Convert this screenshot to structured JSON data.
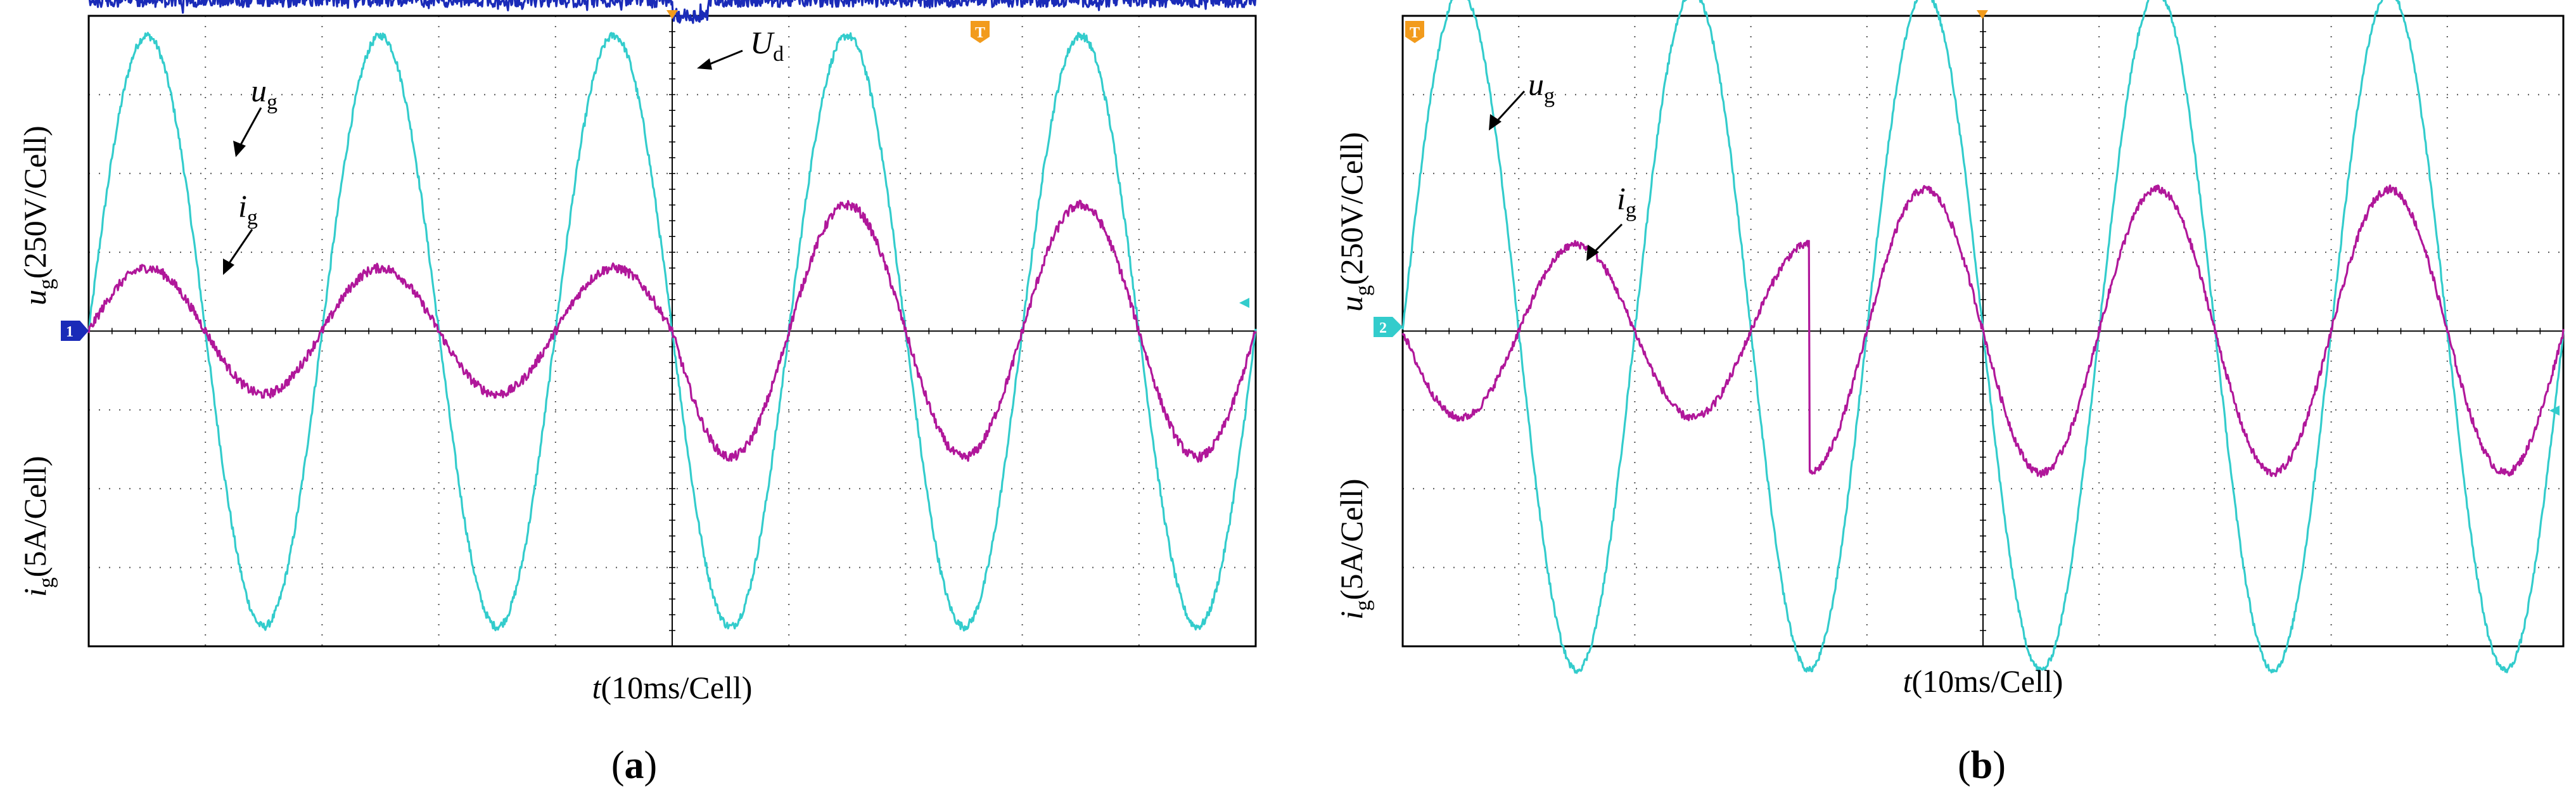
{
  "figure": {
    "panels": [
      {
        "id": "a",
        "caption_open": "(",
        "caption_letter": "a",
        "caption_close": ")",
        "xlabel_italic": "t",
        "xlabel_rest": "(10ms/Cell)",
        "ylabel_upper_var": "u",
        "ylabel_upper_sub": "g",
        "ylabel_upper_rest": "(250V/Cell)",
        "ylabel_lower_var": "i",
        "ylabel_lower_sub": "g",
        "ylabel_lower_rest": "(5A/Cell)",
        "annotations": {
          "ug": {
            "var": "u",
            "sub": "g"
          },
          "ig": {
            "var": "i",
            "sub": "g"
          },
          "ud": {
            "var": "U",
            "sub": "d"
          }
        },
        "markers": {
          "trigger": "T",
          "ch1": "1"
        }
      },
      {
        "id": "b",
        "caption_open": "(",
        "caption_letter": "b",
        "caption_close": ")",
        "xlabel_italic": "t",
        "xlabel_rest": "(10ms/Cell)",
        "ylabel_upper_var": "u",
        "ylabel_upper_sub": "g",
        "ylabel_upper_rest": "(250V/Cell)",
        "ylabel_lower_var": "i",
        "ylabel_lower_sub": "g",
        "ylabel_lower_rest": "(5A/Cell)",
        "annotations": {
          "ug": {
            "var": "u",
            "sub": "g"
          },
          "ig": {
            "var": "i",
            "sub": "g"
          }
        },
        "markers": {
          "trigger": "T",
          "ch2": "2"
        }
      }
    ]
  },
  "colors": {
    "grid_voltage": "#33cccc",
    "grid_current": "#b0179a",
    "dc_voltage": "#1a2bb8",
    "trigger": "#f29b1c",
    "axis": "#000000"
  },
  "chart_data": [
    {
      "type": "line",
      "panel": "a",
      "title": "",
      "xlabel": "t(10ms/Cell)",
      "ylabel_upper": "ug(250V/Cell)",
      "ylabel_lower": "ig(5A/Cell)",
      "x_unit": "ms",
      "x_div": 10,
      "x_divisions": 10,
      "x_range": [
        0,
        100
      ],
      "y_divisions": 8,
      "y_range_div": [
        -4,
        4
      ],
      "grid": true,
      "series": [
        {
          "name": "ug",
          "color_key": "grid_voltage",
          "amplitude_div": 3.75,
          "frequency_hz": 50,
          "phase_deg": 0,
          "offset_div": 0,
          "noise_div": 0.05
        },
        {
          "name": "ig",
          "color_key": "grid_current",
          "segments": [
            {
              "x_start": 0,
              "x_end": 50,
              "amplitude_div": 0.8
            },
            {
              "x_start": 50,
              "x_end": 100,
              "amplitude_div": 1.6
            }
          ],
          "frequency_hz": 50,
          "phase_deg": 0,
          "offset_div": 0,
          "noise_div": 0.06
        },
        {
          "name": "Ud",
          "color_key": "dc_voltage",
          "segments": [
            {
              "x_start": 0,
              "x_end": 50,
              "level_div": 4.2
            },
            {
              "x_start": 50,
              "x_end": 53,
              "level_div": 4.0
            },
            {
              "x_start": 53,
              "x_end": 100,
              "level_div": 4.2
            }
          ],
          "noise_div": 0.09
        }
      ]
    },
    {
      "type": "line",
      "panel": "b",
      "title": "",
      "xlabel": "t(10ms/Cell)",
      "ylabel_upper": "ug(250V/Cell)",
      "ylabel_lower": "ig(5A/Cell)",
      "x_unit": "ms",
      "x_div": 10,
      "x_divisions": 10,
      "x_range": [
        0,
        100
      ],
      "y_divisions": 8,
      "y_range_div": [
        -4,
        4
      ],
      "grid": true,
      "series": [
        {
          "name": "ug",
          "color_key": "grid_voltage",
          "amplitude_div": 4.3,
          "frequency_hz": 50,
          "phase_deg": 0,
          "offset_div": 0,
          "noise_div": 0.04
        },
        {
          "name": "ig",
          "color_key": "grid_current",
          "segments": [
            {
              "x_start": 0,
              "x_end": 35,
              "amplitude_div": 1.1,
              "phase_deg": 180
            },
            {
              "x_start": 35,
              "x_end": 100,
              "amplitude_div": 1.8,
              "phase_deg": 0
            }
          ],
          "frequency_hz": 50,
          "offset_div": 0,
          "noise_div": 0.05
        }
      ]
    }
  ]
}
